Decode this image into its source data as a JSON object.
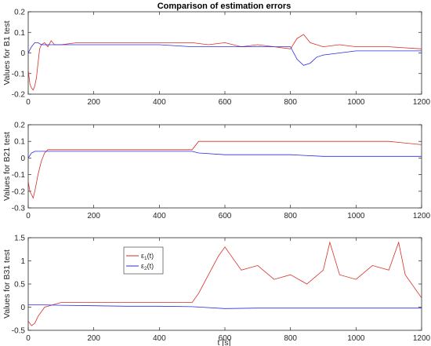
{
  "figure": {
    "title": "Comparison of estimation errors",
    "xlabel": "t [s]"
  },
  "colors": {
    "series1": "#D62F25",
    "series2": "#2B2BE0",
    "axis": "#262626"
  },
  "chart_data": [
    {
      "type": "line",
      "ylabel": "Values for B1 test",
      "xlim": [
        0,
        1200
      ],
      "ylim": [
        -0.2,
        0.2
      ],
      "xticks": [
        0,
        200,
        400,
        600,
        800,
        1000,
        1200
      ],
      "yticks": [
        -0.2,
        -0.1,
        0,
        0.1,
        0.2
      ],
      "ytick_labels": [
        "-0.2",
        "-0.1",
        "0",
        "0.1",
        "0.2"
      ],
      "legend": null,
      "series": [
        {
          "color_key": "series1",
          "x": [
            0,
            5,
            10,
            15,
            20,
            25,
            30,
            35,
            40,
            50,
            60,
            70,
            80,
            100,
            150,
            200,
            250,
            300,
            400,
            500,
            550,
            600,
            650,
            700,
            750,
            800,
            820,
            840,
            860,
            880,
            900,
            950,
            1000,
            1100,
            1200
          ],
          "y": [
            -0.08,
            -0.15,
            -0.17,
            -0.18,
            -0.16,
            -0.12,
            -0.05,
            0.02,
            0.04,
            0.05,
            0.03,
            0.06,
            0.04,
            0.04,
            0.05,
            0.05,
            0.05,
            0.05,
            0.05,
            0.05,
            0.04,
            0.05,
            0.03,
            0.04,
            0.03,
            0.02,
            0.07,
            0.09,
            0.05,
            0.04,
            0.03,
            0.04,
            0.03,
            0.03,
            0.02
          ]
        },
        {
          "color_key": "series2",
          "x": [
            0,
            10,
            20,
            30,
            40,
            60,
            100,
            200,
            300,
            400,
            500,
            600,
            700,
            800,
            820,
            840,
            860,
            880,
            900,
            1000,
            1100,
            1200
          ],
          "y": [
            0.0,
            0.03,
            0.05,
            0.05,
            0.04,
            0.04,
            0.04,
            0.04,
            0.04,
            0.04,
            0.03,
            0.03,
            0.03,
            0.03,
            -0.03,
            -0.06,
            -0.05,
            -0.02,
            -0.01,
            0.01,
            0.01,
            0.01
          ]
        }
      ]
    },
    {
      "type": "line",
      "ylabel": "Values for B21 test",
      "xlim": [
        0,
        1200
      ],
      "ylim": [
        -0.3,
        0.2
      ],
      "xticks": [
        0,
        200,
        400,
        600,
        800,
        1000,
        1200
      ],
      "yticks": [
        -0.3,
        -0.2,
        -0.1,
        0,
        0.1,
        0.2
      ],
      "ytick_labels": [
        "-0.3",
        "-0.2",
        "-0.1",
        "0",
        "0.1",
        "0.2"
      ],
      "legend": null,
      "series": [
        {
          "color_key": "series1",
          "x": [
            0,
            5,
            10,
            15,
            20,
            25,
            30,
            40,
            50,
            60,
            100,
            200,
            300,
            400,
            500,
            520,
            550,
            600,
            700,
            800,
            900,
            1000,
            1100,
            1200
          ],
          "y": [
            -0.14,
            -0.2,
            -0.22,
            -0.24,
            -0.2,
            -0.15,
            -0.1,
            -0.02,
            0.03,
            0.05,
            0.05,
            0.05,
            0.05,
            0.05,
            0.05,
            0.1,
            0.1,
            0.1,
            0.1,
            0.1,
            0.1,
            0.1,
            0.1,
            0.08
          ]
        },
        {
          "color_key": "series2",
          "x": [
            0,
            10,
            20,
            30,
            40,
            60,
            100,
            200,
            300,
            400,
            500,
            520,
            600,
            700,
            800,
            900,
            1000,
            1100,
            1200
          ],
          "y": [
            0.0,
            0.03,
            0.04,
            0.04,
            0.04,
            0.04,
            0.04,
            0.04,
            0.04,
            0.04,
            0.04,
            0.03,
            0.02,
            0.02,
            0.02,
            0.01,
            0.01,
            0.01,
            0.01
          ]
        }
      ]
    },
    {
      "type": "line",
      "ylabel": "Values for B31 test",
      "xlim": [
        0,
        1200
      ],
      "ylim": [
        -0.5,
        1.5
      ],
      "xticks": [
        0,
        200,
        400,
        600,
        800,
        1000,
        1200
      ],
      "yticks": [
        -0.5,
        0,
        0.5,
        1,
        1.5
      ],
      "ytick_labels": [
        "-0.5",
        "0",
        "0.5",
        "1",
        "1.5"
      ],
      "legend": {
        "placement": "upper-left",
        "entries": [
          {
            "color_key": "series1",
            "base": "ε",
            "sub": "1",
            "suffix": "(t)"
          },
          {
            "color_key": "series2",
            "base": "ε",
            "sub": "2",
            "suffix": "(t)"
          }
        ]
      },
      "series": [
        {
          "color_key": "series1",
          "x": [
            0,
            10,
            20,
            30,
            50,
            100,
            200,
            300,
            400,
            500,
            520,
            580,
            600,
            650,
            700,
            750,
            800,
            850,
            900,
            920,
            950,
            1000,
            1050,
            1100,
            1130,
            1150,
            1200
          ],
          "y": [
            -0.3,
            -0.4,
            -0.35,
            -0.2,
            0.0,
            0.1,
            0.1,
            0.1,
            0.1,
            0.1,
            0.3,
            1.1,
            1.3,
            0.8,
            0.9,
            0.6,
            0.7,
            0.5,
            0.8,
            1.4,
            0.7,
            0.6,
            0.9,
            0.8,
            1.4,
            0.7,
            0.2
          ]
        },
        {
          "color_key": "series2",
          "x": [
            0,
            50,
            100,
            200,
            300,
            400,
            500,
            600,
            700,
            800,
            900,
            1000,
            1100,
            1200
          ],
          "y": [
            0.05,
            0.05,
            0.04,
            0.03,
            0.02,
            0.02,
            0.01,
            -0.03,
            -0.02,
            -0.02,
            -0.02,
            -0.02,
            -0.02,
            -0.02
          ]
        }
      ]
    }
  ]
}
